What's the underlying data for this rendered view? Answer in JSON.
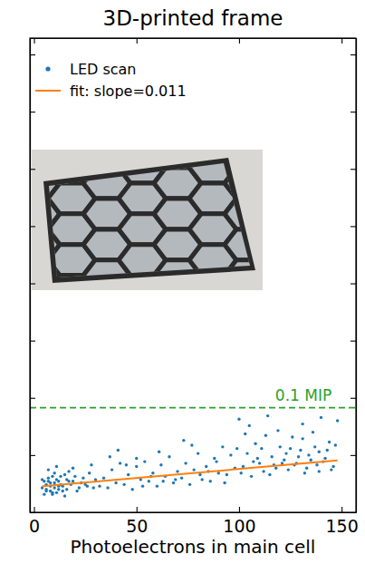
{
  "chart_data": {
    "type": "scatter",
    "title": "3D-printed frame",
    "x_label": "Photoelectrons in main cell",
    "xlim": [
      -2,
      157
    ],
    "xticks": [
      0,
      50,
      100,
      150
    ],
    "ylim": [
      0,
      29
    ],
    "yticks": [
      0,
      3.5,
      7,
      10.5,
      14,
      17.5,
      21,
      24.5,
      28
    ],
    "tick_labels": "x",
    "legend": "upper left",
    "series": [
      {
        "name": "LED scan",
        "color": "#1f77b4",
        "marker": "circle",
        "x": [
          4,
          5,
          6,
          7,
          8,
          9,
          10,
          11,
          12,
          13,
          5,
          6,
          7,
          8,
          9,
          10,
          11,
          12,
          14,
          15,
          4,
          6,
          8,
          10,
          12,
          14,
          16,
          18,
          20,
          22,
          16,
          17,
          19,
          21,
          23,
          24,
          26,
          27,
          29,
          30,
          7,
          9,
          11,
          13,
          15,
          17,
          19,
          25,
          28,
          32,
          34,
          36,
          38,
          40,
          42,
          44,
          46,
          48,
          50,
          52,
          54,
          56,
          58,
          60,
          62,
          64,
          66,
          68,
          70,
          72,
          74,
          76,
          78,
          80,
          82,
          84,
          86,
          88,
          90,
          92,
          94,
          96,
          98,
          100,
          37,
          45,
          53,
          61,
          69,
          77,
          85,
          93,
          41,
          57,
          73,
          89,
          63,
          81,
          99,
          50,
          102,
          104,
          106,
          108,
          110,
          112,
          114,
          116,
          118,
          120,
          122,
          124,
          126,
          128,
          130,
          132,
          134,
          136,
          138,
          140,
          142,
          144,
          146,
          148,
          103,
          107,
          111,
          115,
          119,
          123,
          127,
          131,
          135,
          139,
          143,
          147,
          101,
          109,
          117,
          125,
          129,
          133,
          137,
          141,
          145,
          113,
          121,
          105,
          139,
          131
        ],
        "values": [
          1.5,
          1.9,
          1.3,
          2.1,
          1.6,
          1.2,
          1.8,
          2.0,
          1.4,
          1.7,
          1.1,
          1.7,
          1.9,
          1.3,
          2.2,
          1.5,
          1.2,
          1.9,
          1.6,
          2.3,
          2.0,
          1.4,
          1.8,
          2.4,
          1.6,
          1.3,
          2.0,
          1.7,
          2.2,
          1.5,
          1.4,
          2.5,
          1.9,
          1.3,
          1.8,
          2.1,
          1.6,
          2.4,
          1.5,
          2.0,
          2.6,
          1.1,
          2.8,
          2.2,
          1.0,
          1.9,
          2.7,
          1.7,
          2.9,
          1.6,
          2.1,
          1.5,
          2.6,
          1.8,
          3.0,
          1.7,
          2.3,
          1.4,
          2.8,
          2.0,
          3.1,
          1.9,
          2.4,
          1.6,
          2.9,
          2.2,
          3.4,
          1.8,
          2.5,
          2.1,
          3.0,
          1.7,
          2.6,
          3.6,
          2.0,
          2.8,
          1.9,
          3.3,
          2.4,
          4.0,
          2.3,
          3.5,
          2.7,
          5.7,
          3.4,
          2.9,
          1.6,
          3.7,
          2.0,
          4.1,
          2.5,
          1.8,
          3.8,
          2.2,
          4.4,
          3.1,
          1.9,
          2.3,
          3.9,
          3.3,
          2.8,
          3.6,
          2.2,
          4.2,
          3.0,
          2.5,
          5.9,
          3.4,
          2.7,
          4.0,
          3.2,
          2.6,
          4.6,
          3.0,
          3.8,
          2.4,
          3.5,
          4.9,
          2.9,
          5.8,
          3.3,
          4.3,
          2.8,
          5.6,
          4.8,
          3.1,
          3.9,
          2.3,
          5.0,
          3.6,
          2.9,
          4.5,
          3.2,
          2.5,
          3.8,
          4.1,
          2.4,
          3.3,
          2.9,
          3.9,
          3.4,
          2.7,
          4.0,
          3.1,
          2.6,
          4.7,
          3.0,
          5.3,
          3.7,
          5.4
        ]
      },
      {
        "name": "fit: slope=0.011",
        "type": "line",
        "color": "#ff7f0e",
        "line_style": "solid",
        "slope": 0.011,
        "intercept": 1.55
      }
    ],
    "reference_line": {
      "label": "0.1 MIP",
      "value": 6.4,
      "color": "#2ca02c",
      "line_style": "dashed"
    }
  }
}
